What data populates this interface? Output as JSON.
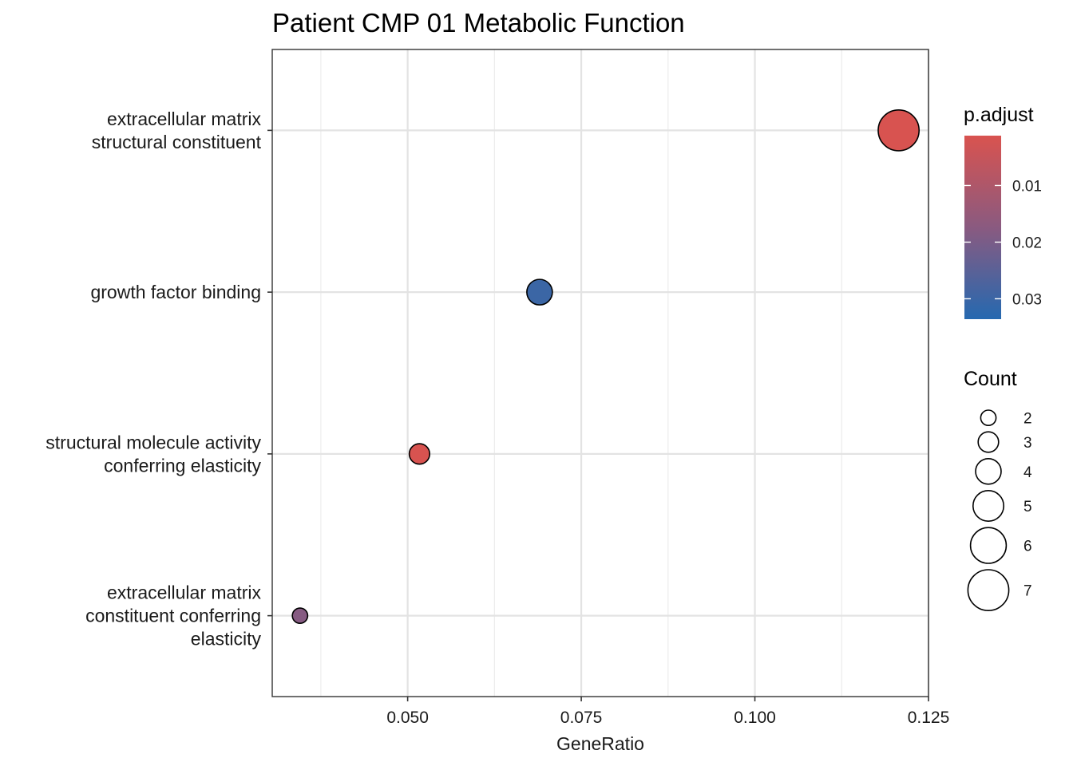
{
  "chart_data": {
    "type": "scatter",
    "title": "Patient CMP 01 Metabolic Function",
    "xlabel": "GeneRatio",
    "ylabel": "",
    "xlim": [
      0.0305,
      0.125
    ],
    "x_ticks": [
      "0.050",
      "0.075",
      "0.100",
      "0.125"
    ],
    "x_tick_values": [
      0.05,
      0.075,
      0.1,
      0.125
    ],
    "grid": true,
    "categories": [
      [
        "extracellular matrix",
        "structural constituent"
      ],
      [
        "growth factor binding"
      ],
      [
        "structural molecule activity",
        "conferring elasticity"
      ],
      [
        "extracellular matrix",
        "constituent conferring",
        "elasticity"
      ]
    ],
    "points": [
      {
        "category_index": 0,
        "x": 0.1207,
        "count": 7,
        "p_adjust": 0.0015
      },
      {
        "category_index": 1,
        "x": 0.069,
        "count": 4,
        "p_adjust": 0.03
      },
      {
        "category_index": 2,
        "x": 0.0517,
        "count": 3,
        "p_adjust": 0.0015
      },
      {
        "category_index": 3,
        "x": 0.0345,
        "count": 2,
        "p_adjust": 0.018
      }
    ],
    "color_legend": {
      "title": "p.adjust",
      "ticks": [
        "0.01",
        "0.02",
        "0.03"
      ],
      "tick_values": [
        0.01,
        0.02,
        0.03
      ],
      "range": [
        0.0012,
        0.0336
      ],
      "low_color": "#d9534f",
      "high_color": "#2569b0"
    },
    "size_legend": {
      "title": "Count",
      "values": [
        2,
        3,
        4,
        5,
        6,
        7
      ],
      "labels": [
        "2",
        "3",
        "4",
        "5",
        "6",
        "7"
      ]
    },
    "legend_position": "right"
  }
}
